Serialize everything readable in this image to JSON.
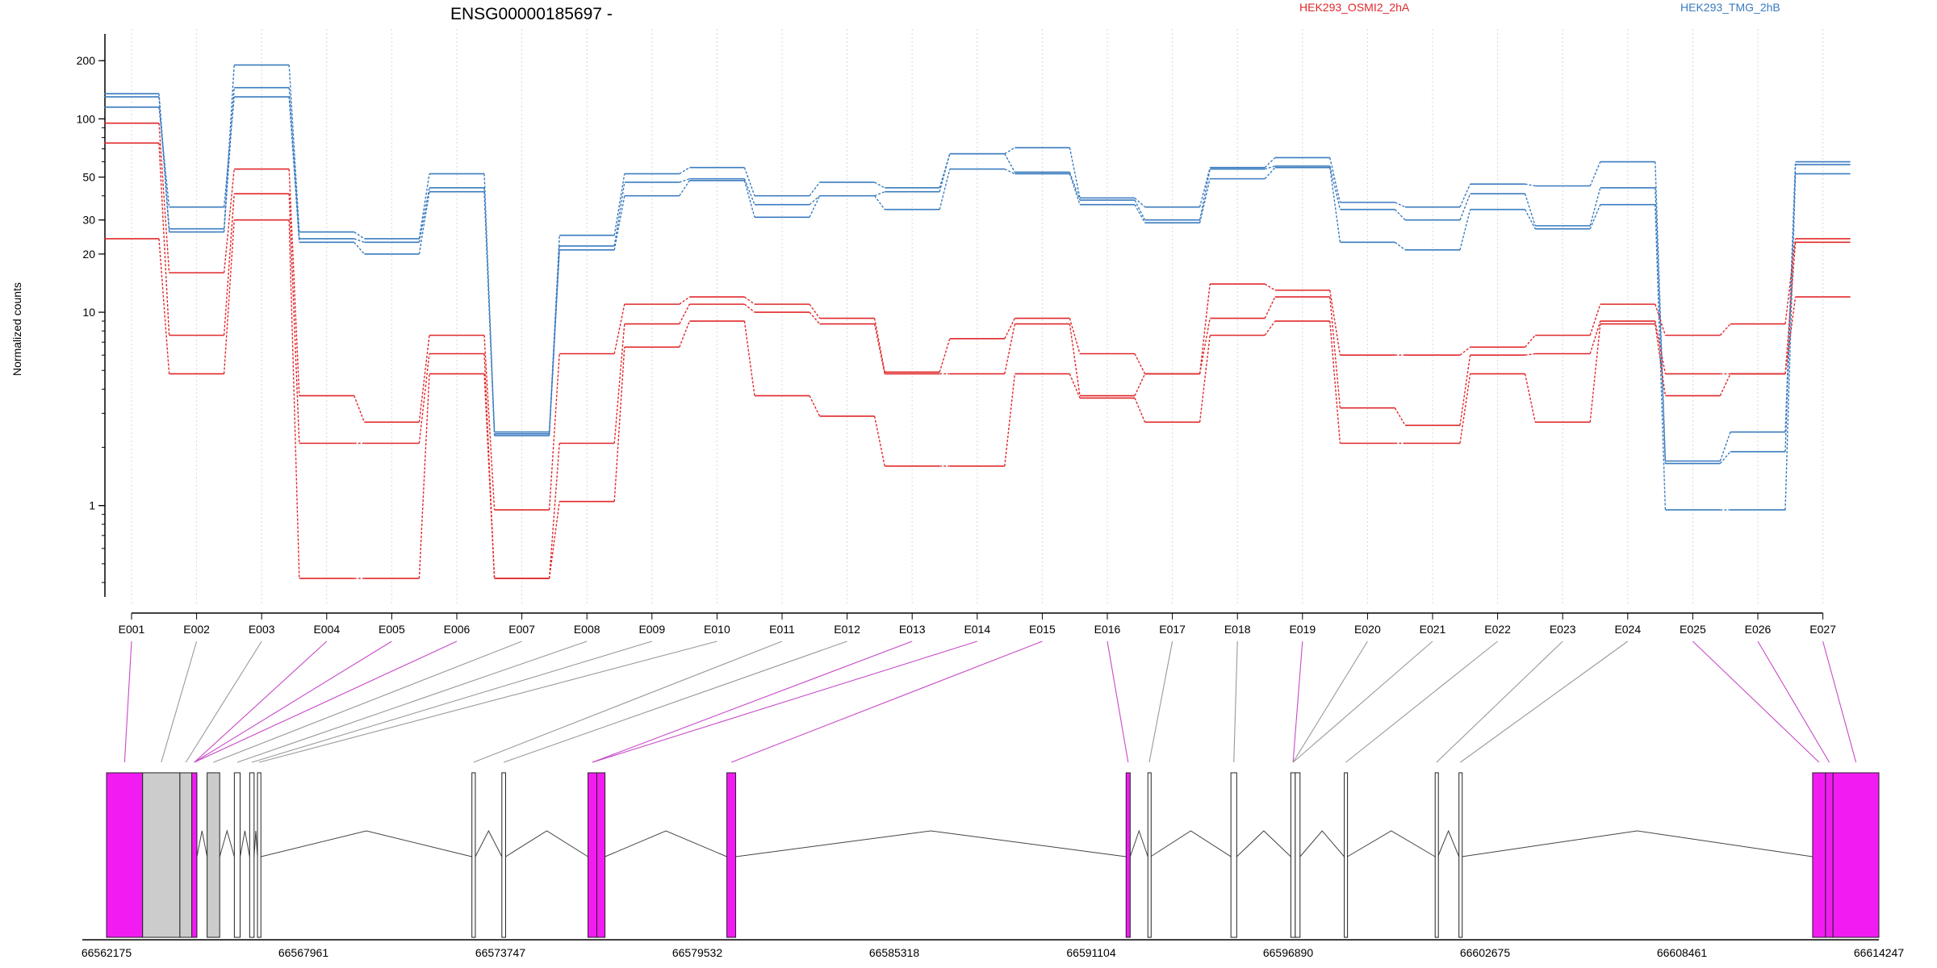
{
  "chart_data": {
    "type": "line",
    "title": "ENSG00000185697 -",
    "ylabel": "Normalized counts",
    "yscale": "log",
    "ylim": [
      0.35,
      250
    ],
    "yticks": [
      {
        "value": 200,
        "label": "200"
      },
      {
        "value": 100,
        "label": "100"
      },
      {
        "value": 50,
        "label": "50"
      },
      {
        "value": 30,
        "label": "30"
      },
      {
        "value": 20,
        "label": "20"
      },
      {
        "value": 10,
        "label": "10"
      },
      {
        "value": 1,
        "label": "1"
      }
    ],
    "grid": "vertical dotted lines at exon centers",
    "legend": [
      {
        "label": "HEK293_OSMI2_2hA",
        "color": "#e0282b"
      },
      {
        "label": "HEK293_TMG_2hB",
        "color": "#3a7bbf"
      }
    ],
    "categories": [
      "E001",
      "E002",
      "E003",
      "E004",
      "E005",
      "E006",
      "E007",
      "E008",
      "E009",
      "E010",
      "E011",
      "E012",
      "E013",
      "E014",
      "E015",
      "E016",
      "E017",
      "E018",
      "E019",
      "E020",
      "E021",
      "E022",
      "E023",
      "E024",
      "E025",
      "E026",
      "E027"
    ],
    "series": [
      {
        "group": "HEK293_TMG_2hB",
        "color": "#3a7bbf",
        "values": [
          135,
          27,
          190,
          26,
          24,
          52,
          2.4,
          25,
          52,
          56,
          40,
          47,
          44,
          66,
          71,
          39,
          35,
          56,
          63,
          37,
          35,
          46,
          45,
          60,
          1.7,
          2.4,
          60
        ]
      },
      {
        "group": "HEK293_TMG_2hB",
        "color": "#3a7bbf",
        "values": [
          130,
          26,
          145,
          24,
          23,
          44,
          2.35,
          22,
          47,
          49,
          36,
          40,
          42,
          66,
          53,
          38,
          30,
          55,
          57,
          34,
          30,
          41,
          28,
          44,
          1.65,
          1.9,
          58
        ]
      },
      {
        "group": "HEK293_TMG_2hB",
        "color": "#3a7bbf",
        "values": [
          115,
          35,
          130,
          23,
          20,
          42,
          2.3,
          21,
          40,
          48,
          31,
          40,
          34,
          55,
          52,
          36,
          29,
          49,
          56,
          23,
          21,
          34,
          27,
          36,
          0.95,
          0.95,
          52
        ]
      },
      {
        "group": "HEK293_OSMI2_2hA",
        "color": "#e0282b",
        "values": [
          95,
          16,
          55,
          3.7,
          2.7,
          7.6,
          0.95,
          6.1,
          11,
          12,
          11,
          9.3,
          4.9,
          7.3,
          9.3,
          6.1,
          4.8,
          14,
          13,
          6,
          6,
          6.6,
          7.6,
          11,
          7.6,
          8.7,
          24
        ]
      },
      {
        "group": "HEK293_OSMI2_2hA",
        "color": "#e0282b",
        "values": [
          75,
          7.6,
          41,
          2.1,
          2.1,
          6.1,
          0.42,
          2.1,
          8.7,
          11,
          10,
          8.7,
          4.8,
          4.8,
          8.7,
          3.7,
          4.8,
          9.3,
          12,
          3.2,
          2.6,
          6,
          6.1,
          9,
          4.8,
          4.8,
          23
        ]
      },
      {
        "group": "HEK293_OSMI2_2hA",
        "color": "#e0282b",
        "values": [
          24,
          4.8,
          30,
          0.42,
          0.42,
          4.8,
          0.42,
          1.05,
          6.6,
          9,
          3.7,
          2.9,
          1.6,
          1.6,
          4.8,
          3.6,
          2.7,
          7.6,
          9,
          2.1,
          2.1,
          4.8,
          2.7,
          8.7,
          3.7,
          4.8,
          12
        ]
      }
    ],
    "gene_model": {
      "genomic_axis_labels": [
        "66562175",
        "66567961",
        "66573747",
        "66579532",
        "66585318",
        "66591104",
        "66596890",
        "66602675",
        "66608461",
        "66614247"
      ],
      "genomic_range": [
        66562175,
        66614247
      ],
      "exon_fill_colors": {
        "highlighted": "#f21cf2",
        "standard": "#cccccc",
        "narrow": "#ffffff"
      },
      "exons": [
        {
          "id": "E001",
          "start": 66562175,
          "end": 66563235,
          "highlighted": true
        },
        {
          "id": "E002",
          "start": 66563235,
          "end": 66564330,
          "highlighted": false
        },
        {
          "id": "E003",
          "start": 66564330,
          "end": 66564680,
          "highlighted": false
        },
        {
          "id": "E004",
          "start": 66564680,
          "end": 66564830,
          "highlighted": true
        },
        {
          "id": "E005",
          "start": 66565130,
          "end": 66565500,
          "highlighted": false
        },
        {
          "id": "E006",
          "start": 66565930,
          "end": 66566100,
          "highlighted": false
        },
        {
          "id": "E007",
          "start": 66566380,
          "end": 66566510,
          "highlighted": false
        },
        {
          "id": "E008",
          "start": 66566610,
          "end": 66566710,
          "highlighted": false
        },
        {
          "id": "E009",
          "start": 66572910,
          "end": 66573010,
          "highlighted": false
        },
        {
          "id": "E010",
          "start": 66573790,
          "end": 66573900,
          "highlighted": false
        },
        {
          "id": "E011",
          "start": 66576320,
          "end": 66576580,
          "highlighted": true
        },
        {
          "id": "E012",
          "start": 66576580,
          "end": 66576820,
          "highlighted": true
        },
        {
          "id": "E013",
          "start": 66580400,
          "end": 66580660,
          "highlighted": true
        },
        {
          "id": "E014",
          "start": 66592130,
          "end": 66592250,
          "highlighted": true
        },
        {
          "id": "E015",
          "start": 66592770,
          "end": 66592850,
          "highlighted": false
        },
        {
          "id": "E016",
          "start": 66595210,
          "end": 66595380,
          "highlighted": false
        },
        {
          "id": "E017",
          "start": 66596970,
          "end": 66597100,
          "highlighted": false
        },
        {
          "id": "E018",
          "start": 66597100,
          "end": 66597240,
          "highlighted": false
        },
        {
          "id": "E019",
          "start": 66598540,
          "end": 66598630,
          "highlighted": false
        },
        {
          "id": "E020",
          "start": 66601210,
          "end": 66601290,
          "highlighted": false
        },
        {
          "id": "E021",
          "start": 66601910,
          "end": 66601990,
          "highlighted": false
        },
        {
          "id": "E022",
          "start": 66612300,
          "end": 66612680,
          "highlighted": true
        },
        {
          "id": "E023",
          "start": 66612680,
          "end": 66612900,
          "highlighted": true
        },
        {
          "id": "E024",
          "start": 66612900,
          "end": 66614247,
          "highlighted": true
        }
      ],
      "connector_targets": [
        "E001",
        "E002",
        "E003",
        "E004",
        "E004",
        "E004",
        "E005",
        "E006",
        "E007",
        "E008",
        "E009",
        "E010",
        "E011",
        "E011",
        "E013",
        "E014",
        "E015",
        "E016",
        "E017",
        "E017",
        "E017",
        "E019",
        "E020",
        "E021",
        "E022",
        "E023",
        "E024"
      ],
      "connector_highlighted": [
        true,
        false,
        false,
        true,
        true,
        true,
        false,
        false,
        false,
        false,
        false,
        false,
        true,
        true,
        true,
        true,
        false,
        false,
        true,
        false,
        false,
        false,
        false,
        false,
        true,
        true,
        true
      ]
    }
  }
}
